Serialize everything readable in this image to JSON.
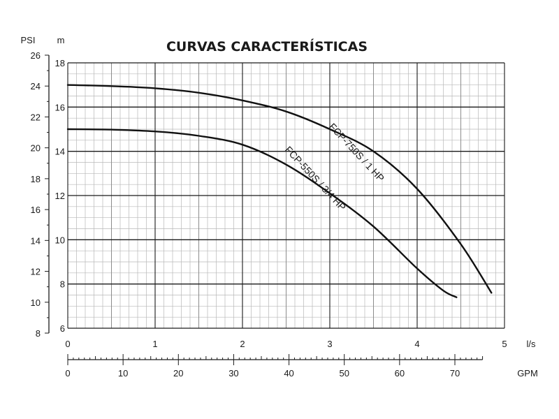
{
  "chart_data": {
    "type": "line",
    "title": "CURVAS CARACTERÍSTICAS",
    "y_left_unit": "PSI",
    "y_right_unit": "m",
    "x_top_unit": "l/s",
    "x_bottom_unit": "GPM",
    "y_m_range": [
      6,
      18
    ],
    "y_psi_range": [
      8,
      26
    ],
    "x_ls_range": [
      0,
      5
    ],
    "x_gpm_range": [
      0,
      75
    ],
    "psi_ticks": [
      "8",
      "10",
      "12",
      "14",
      "16",
      "18",
      "20",
      "22",
      "24",
      "26"
    ],
    "m_ticks": [
      "6",
      "8",
      "10",
      "12",
      "14",
      "16",
      "18"
    ],
    "ls_ticks": [
      "0",
      "1",
      "2",
      "3",
      "4",
      "5"
    ],
    "gpm_ticks": [
      "0",
      "10",
      "20",
      "30",
      "40",
      "50",
      "60",
      "70"
    ],
    "grid": true,
    "series": [
      {
        "name": "FCP-750S / 1 HP",
        "x_ls": [
          0,
          0.5,
          1.0,
          1.5,
          2.0,
          2.5,
          3.0,
          3.5,
          4.0,
          4.5,
          4.85
        ],
        "y_m": [
          17.0,
          16.95,
          16.85,
          16.65,
          16.3,
          15.8,
          15.0,
          14.0,
          12.3,
          9.8,
          7.6
        ]
      },
      {
        "name": "FCP-550S / 3/4 HP",
        "x_ls": [
          0,
          0.5,
          1.0,
          1.5,
          2.0,
          2.5,
          3.0,
          3.5,
          4.0,
          4.3,
          4.45
        ],
        "y_m": [
          15.0,
          14.98,
          14.9,
          14.7,
          14.3,
          13.4,
          12.1,
          10.6,
          8.7,
          7.7,
          7.4
        ]
      }
    ]
  }
}
